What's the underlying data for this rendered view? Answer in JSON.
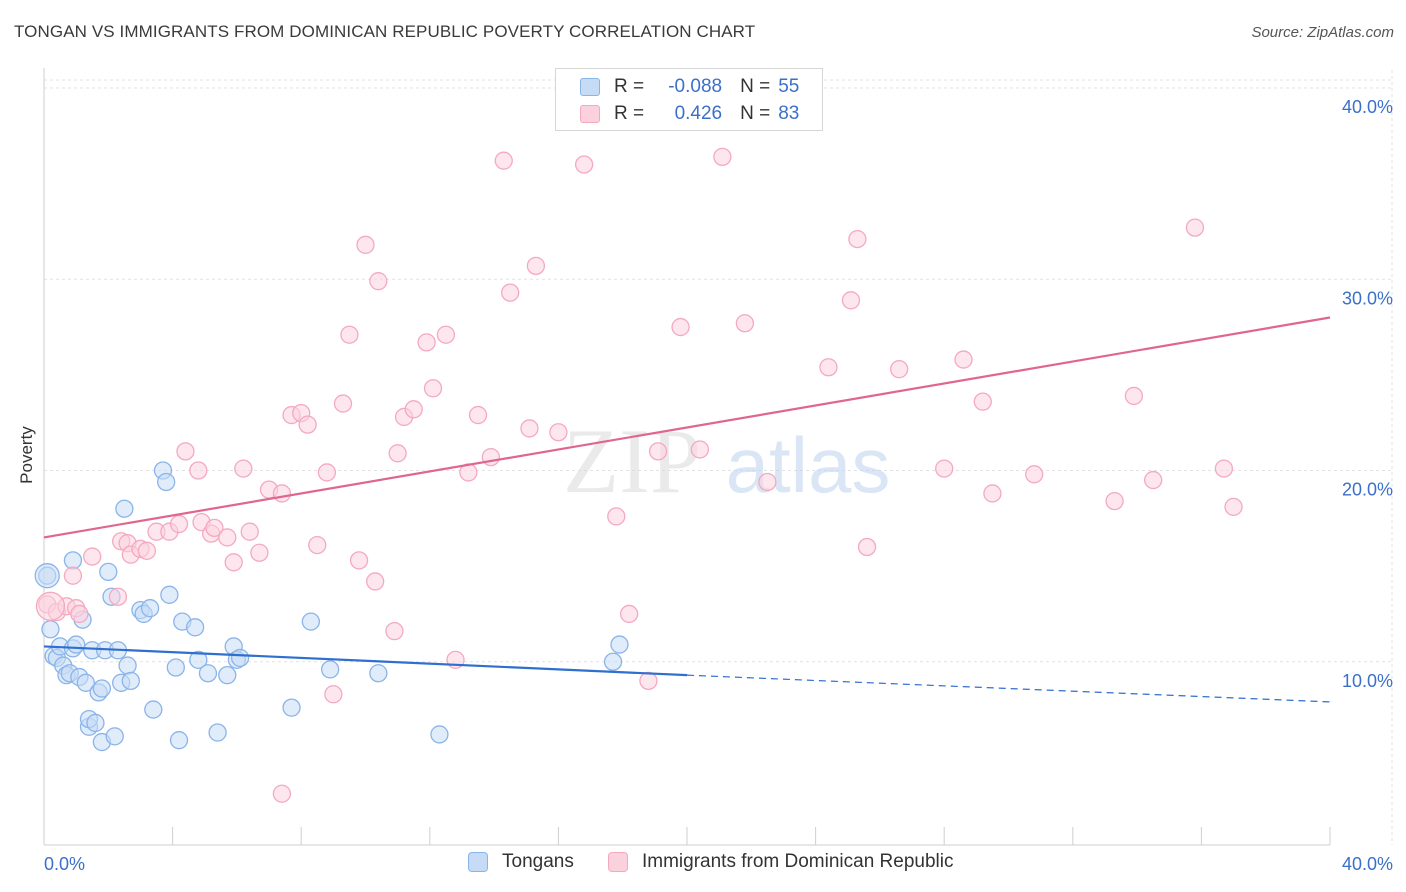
{
  "chart_data": {
    "type": "scatter",
    "title": "TONGAN VS IMMIGRANTS FROM DOMINICAN REPUBLIC POVERTY CORRELATION CHART",
    "source": "Source: ZipAtlas.com",
    "ylabel": "Poverty",
    "xlabel": "",
    "xlim": [
      0,
      40
    ],
    "ylim": [
      0,
      40
    ],
    "x_ticks": [
      0,
      40
    ],
    "x_tick_labels": [
      "0.0%",
      "40.0%"
    ],
    "y_ticks": [
      10,
      20,
      30,
      40
    ],
    "y_tick_labels": [
      "10.0%",
      "20.0%",
      "30.0%",
      "40.0%"
    ],
    "grid": true,
    "legend_position": "top-center",
    "watermark": {
      "left": "ZIP",
      "right": "atlas"
    },
    "series": [
      {
        "name": "Tongans",
        "color": "#8ab4ea",
        "line_color": "#2f6fce",
        "R": "-0.088",
        "N": "55",
        "trend": {
          "x0": 0,
          "y0": 10.8,
          "x1": 20,
          "y1": 9.3,
          "x_dash_end": 40,
          "y_dash_end": 7.9
        },
        "points": [
          [
            0.1,
            14.5
          ],
          [
            0.2,
            11.7
          ],
          [
            0.3,
            10.3
          ],
          [
            0.4,
            10.2
          ],
          [
            0.5,
            10.8
          ],
          [
            0.6,
            9.8
          ],
          [
            0.7,
            9.3
          ],
          [
            0.8,
            9.4
          ],
          [
            0.9,
            10.7
          ],
          [
            0.9,
            15.3
          ],
          [
            1.0,
            10.9
          ],
          [
            1.1,
            9.2
          ],
          [
            1.2,
            12.2
          ],
          [
            1.3,
            8.9
          ],
          [
            1.4,
            6.6
          ],
          [
            1.4,
            7.0
          ],
          [
            1.5,
            10.6
          ],
          [
            1.6,
            6.8
          ],
          [
            1.7,
            8.4
          ],
          [
            1.8,
            5.8
          ],
          [
            1.8,
            8.6
          ],
          [
            1.9,
            10.6
          ],
          [
            2.0,
            14.7
          ],
          [
            2.1,
            13.4
          ],
          [
            2.2,
            6.1
          ],
          [
            2.3,
            10.6
          ],
          [
            2.4,
            8.9
          ],
          [
            2.5,
            18.0
          ],
          [
            2.6,
            9.8
          ],
          [
            2.7,
            9.0
          ],
          [
            3.0,
            12.7
          ],
          [
            3.1,
            12.5
          ],
          [
            3.3,
            12.8
          ],
          [
            3.4,
            7.5
          ],
          [
            3.7,
            20.0
          ],
          [
            3.8,
            19.4
          ],
          [
            3.9,
            13.5
          ],
          [
            4.1,
            9.7
          ],
          [
            4.2,
            5.9
          ],
          [
            4.3,
            12.1
          ],
          [
            4.7,
            11.8
          ],
          [
            4.8,
            10.1
          ],
          [
            5.1,
            9.4
          ],
          [
            5.4,
            6.3
          ],
          [
            5.7,
            9.3
          ],
          [
            5.9,
            10.8
          ],
          [
            6.0,
            10.1
          ],
          [
            6.1,
            10.2
          ],
          [
            7.7,
            7.6
          ],
          [
            8.3,
            12.1
          ],
          [
            8.9,
            9.6
          ],
          [
            10.4,
            9.4
          ],
          [
            12.3,
            6.2
          ],
          [
            17.9,
            10.9
          ],
          [
            17.7,
            10.0
          ]
        ]
      },
      {
        "name": "Immigrants from Dominican Republic",
        "color": "#f4a9c0",
        "line_color": "#e0668e",
        "R": "0.426",
        "N": "83",
        "trend": {
          "x0": 0,
          "y0": 16.5,
          "x1": 40,
          "y1": 28.0
        },
        "points": [
          [
            0.1,
            13.0
          ],
          [
            0.4,
            12.6
          ],
          [
            0.7,
            12.9
          ],
          [
            0.9,
            14.5
          ],
          [
            1.0,
            12.8
          ],
          [
            1.1,
            12.5
          ],
          [
            1.5,
            15.5
          ],
          [
            2.3,
            13.4
          ],
          [
            2.4,
            16.3
          ],
          [
            2.6,
            16.2
          ],
          [
            2.7,
            15.6
          ],
          [
            3.0,
            15.9
          ],
          [
            3.2,
            15.8
          ],
          [
            3.5,
            16.8
          ],
          [
            3.9,
            16.8
          ],
          [
            4.2,
            17.2
          ],
          [
            4.4,
            21.0
          ],
          [
            4.8,
            20.0
          ],
          [
            4.9,
            17.3
          ],
          [
            5.2,
            16.7
          ],
          [
            5.3,
            17.0
          ],
          [
            5.7,
            16.5
          ],
          [
            5.9,
            15.2
          ],
          [
            6.2,
            20.1
          ],
          [
            6.4,
            16.8
          ],
          [
            6.7,
            15.7
          ],
          [
            7.0,
            19.0
          ],
          [
            7.4,
            18.8
          ],
          [
            7.4,
            3.1
          ],
          [
            7.7,
            22.9
          ],
          [
            8.0,
            23.0
          ],
          [
            8.2,
            22.4
          ],
          [
            8.5,
            16.1
          ],
          [
            8.8,
            19.9
          ],
          [
            9.0,
            8.3
          ],
          [
            9.3,
            23.5
          ],
          [
            9.5,
            27.1
          ],
          [
            9.8,
            15.3
          ],
          [
            10.0,
            31.8
          ],
          [
            10.3,
            14.2
          ],
          [
            10.4,
            29.9
          ],
          [
            10.9,
            11.6
          ],
          [
            11.0,
            20.9
          ],
          [
            11.2,
            22.8
          ],
          [
            11.5,
            23.2
          ],
          [
            11.9,
            26.7
          ],
          [
            12.1,
            24.3
          ],
          [
            12.5,
            27.1
          ],
          [
            12.8,
            10.1
          ],
          [
            13.2,
            19.9
          ],
          [
            13.5,
            22.9
          ],
          [
            13.9,
            20.7
          ],
          [
            14.3,
            36.2
          ],
          [
            14.5,
            29.3
          ],
          [
            15.1,
            22.2
          ],
          [
            15.3,
            30.7
          ],
          [
            16.0,
            22.0
          ],
          [
            16.8,
            36.0
          ],
          [
            17.8,
            17.6
          ],
          [
            18.2,
            12.5
          ],
          [
            18.8,
            9.0
          ],
          [
            19.1,
            21.0
          ],
          [
            19.8,
            27.5
          ],
          [
            20.4,
            21.1
          ],
          [
            21.1,
            36.4
          ],
          [
            21.8,
            27.7
          ],
          [
            22.5,
            19.4
          ],
          [
            24.4,
            25.4
          ],
          [
            25.1,
            28.9
          ],
          [
            25.3,
            32.1
          ],
          [
            25.6,
            16.0
          ],
          [
            26.6,
            25.3
          ],
          [
            28.0,
            20.1
          ],
          [
            28.6,
            25.8
          ],
          [
            29.2,
            23.6
          ],
          [
            29.5,
            18.8
          ],
          [
            30.8,
            19.8
          ],
          [
            33.3,
            18.4
          ],
          [
            33.9,
            23.9
          ],
          [
            34.5,
            19.5
          ],
          [
            35.8,
            32.7
          ],
          [
            36.7,
            20.1
          ],
          [
            37.0,
            18.1
          ]
        ]
      }
    ]
  }
}
